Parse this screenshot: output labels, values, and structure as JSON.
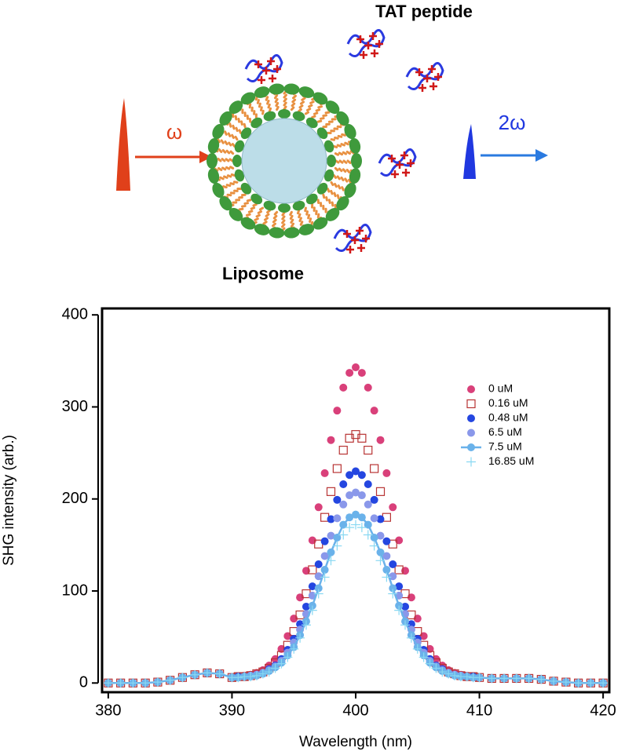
{
  "diagram": {
    "peptide_label": "TAT peptide",
    "liposome_label": "Liposome",
    "input_label": "ω",
    "output_label": "2ω"
  },
  "chart_data": {
    "type": "scatter",
    "x_label": "Wavelength (nm)",
    "y_label": "SHG intensity (arb.)",
    "xlim": [
      379.5,
      420.5
    ],
    "ylim": [
      -10,
      407
    ],
    "xticks": [
      380,
      390,
      400,
      410,
      420
    ],
    "yticks": [
      0,
      100,
      200,
      300,
      400
    ],
    "legend": "upper right",
    "x": [
      380,
      381,
      382,
      383,
      384,
      385,
      386,
      387,
      388,
      389,
      390,
      390.5,
      391,
      391.5,
      392,
      392.5,
      393,
      393.5,
      394,
      394.5,
      395,
      395.5,
      396,
      396.5,
      397,
      397.5,
      398,
      398.5,
      399,
      399.5,
      400,
      400.5,
      401,
      401.5,
      402,
      402.5,
      403,
      403.5,
      404,
      404.5,
      405,
      405.5,
      406,
      406.5,
      407,
      407.5,
      408,
      408.5,
      409,
      409.5,
      410,
      411,
      412,
      413,
      414,
      415,
      416,
      417,
      418,
      419,
      420
    ],
    "series": [
      {
        "name": "0 uM",
        "color": "#d9407a",
        "marker": "circle",
        "values": [
          0,
          0,
          0,
          0,
          1,
          3,
          6,
          9,
          11,
          10,
          6,
          7,
          8,
          9,
          11,
          14,
          19,
          26,
          37,
          51,
          70,
          93,
          122,
          155,
          191,
          228,
          264,
          296,
          321,
          337,
          343,
          337,
          321,
          296,
          264,
          228,
          191,
          155,
          122,
          93,
          70,
          51,
          37,
          26,
          19,
          14,
          11,
          9,
          8,
          7,
          6,
          5,
          5,
          5,
          5,
          4,
          2,
          1,
          0,
          0,
          0
        ]
      },
      {
        "name": "0.16 uM",
        "color": "#b83434",
        "marker": "square",
        "values": [
          0,
          0,
          0,
          0,
          1,
          3,
          6,
          9,
          11,
          10,
          6,
          7,
          7,
          8,
          10,
          12,
          16,
          22,
          30,
          41,
          56,
          74,
          97,
          123,
          151,
          180,
          208,
          233,
          253,
          266,
          270,
          266,
          253,
          233,
          208,
          180,
          151,
          123,
          97,
          74,
          56,
          41,
          30,
          22,
          16,
          12,
          10,
          8,
          7,
          7,
          6,
          5,
          5,
          5,
          5,
          4,
          2,
          1,
          0,
          0,
          0
        ]
      },
      {
        "name": "0.48 uM",
        "color": "#2446e0",
        "marker": "circle",
        "values": [
          0,
          0,
          0,
          0,
          1,
          3,
          6,
          9,
          11,
          10,
          6,
          7,
          7,
          8,
          9,
          11,
          15,
          19,
          26,
          36,
          48,
          64,
          83,
          105,
          129,
          154,
          178,
          199,
          216,
          226,
          230,
          226,
          216,
          199,
          178,
          154,
          129,
          105,
          83,
          64,
          48,
          36,
          26,
          19,
          15,
          11,
          9,
          8,
          7,
          7,
          6,
          5,
          5,
          5,
          5,
          4,
          2,
          1,
          0,
          0,
          0
        ]
      },
      {
        "name": "6.5 uM",
        "color": "#8a98ea",
        "marker": "circle",
        "values": [
          0,
          0,
          0,
          0,
          1,
          3,
          6,
          9,
          11,
          10,
          6,
          6,
          7,
          8,
          9,
          11,
          14,
          18,
          24,
          33,
          44,
          58,
          75,
          95,
          116,
          138,
          160,
          179,
          194,
          204,
          207,
          204,
          194,
          179,
          160,
          138,
          116,
          95,
          75,
          58,
          44,
          33,
          24,
          18,
          14,
          11,
          9,
          8,
          7,
          6,
          6,
          5,
          5,
          5,
          5,
          4,
          2,
          1,
          0,
          0,
          0
        ]
      },
      {
        "name": "7.5 uM",
        "color": "#6ab2ea",
        "marker": "line-circle",
        "values": [
          0,
          0,
          0,
          0,
          1,
          3,
          6,
          9,
          11,
          10,
          6,
          6,
          7,
          7,
          8,
          10,
          13,
          17,
          22,
          30,
          39,
          52,
          67,
          84,
          103,
          123,
          142,
          158,
          172,
          180,
          183,
          180,
          172,
          158,
          142,
          123,
          103,
          84,
          67,
          52,
          39,
          30,
          22,
          17,
          13,
          10,
          8,
          7,
          7,
          6,
          6,
          5,
          5,
          5,
          5,
          4,
          2,
          1,
          0,
          0,
          0
        ]
      },
      {
        "name": "16.85 uM",
        "color": "#88d8f2",
        "marker": "plus",
        "values": [
          0,
          0,
          0,
          0,
          1,
          3,
          6,
          9,
          11,
          10,
          6,
          6,
          7,
          7,
          8,
          10,
          12,
          16,
          21,
          28,
          37,
          49,
          63,
          79,
          97,
          115,
          133,
          149,
          161,
          169,
          172,
          169,
          161,
          149,
          133,
          115,
          97,
          79,
          63,
          49,
          37,
          28,
          21,
          16,
          12,
          10,
          8,
          7,
          7,
          6,
          6,
          5,
          5,
          5,
          5,
          4,
          2,
          1,
          0,
          0,
          0
        ]
      }
    ]
  }
}
